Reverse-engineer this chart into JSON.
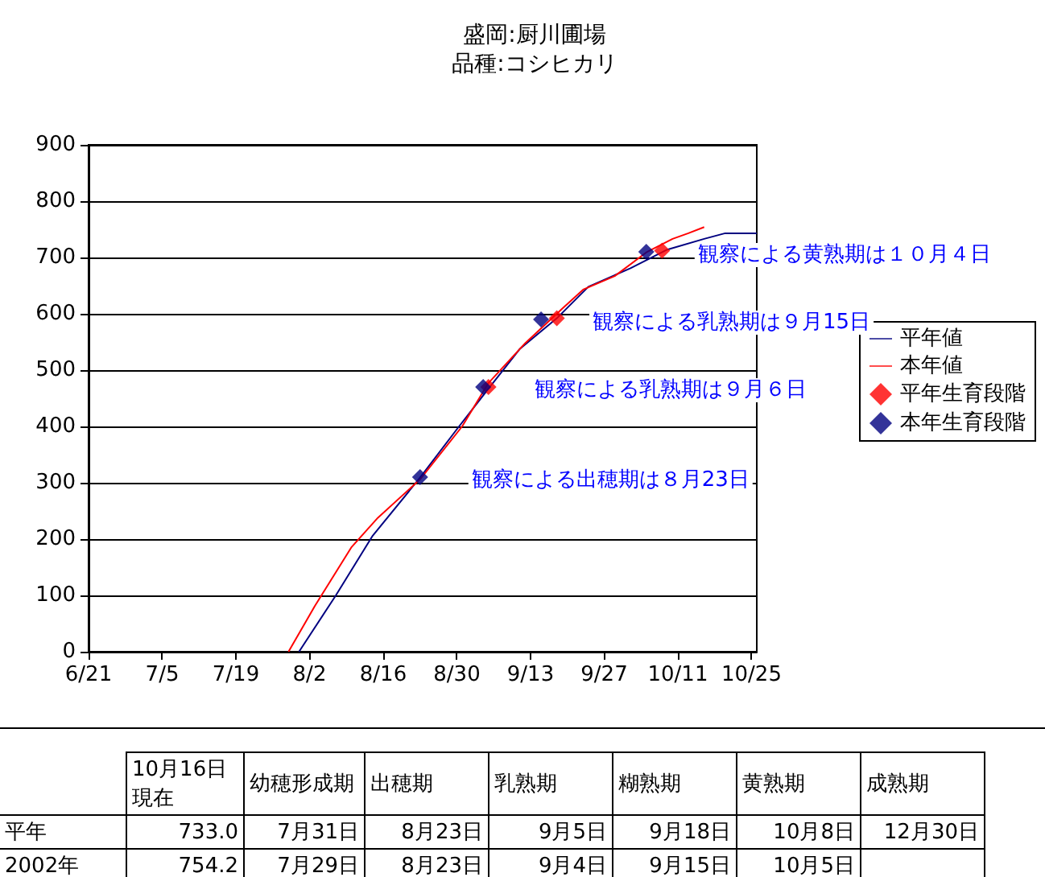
{
  "chart_data": [
    {
      "type": "line",
      "title": "盛岡:厨川圃場",
      "subtitle": "品種:コシヒカリ",
      "xlim": [
        "--06-21",
        "--10-26"
      ],
      "xticks": [
        {
          "value": "--06-21",
          "label": "6/21"
        },
        {
          "value": "--07-05",
          "label": "7/5"
        },
        {
          "value": "--07-19",
          "label": "7/19"
        },
        {
          "value": "--08-02",
          "label": "8/2"
        },
        {
          "value": "--08-16",
          "label": "8/16"
        },
        {
          "value": "--08-30",
          "label": "8/30"
        },
        {
          "value": "--09-13",
          "label": "9/13"
        },
        {
          "value": "--09-27",
          "label": "9/27"
        },
        {
          "value": "--10-11",
          "label": "10/11"
        },
        {
          "value": "--10-25",
          "label": "10/25"
        }
      ],
      "ylim": [
        0,
        900
      ],
      "yticks": [
        0,
        100,
        200,
        300,
        400,
        500,
        600,
        700,
        800,
        900
      ],
      "grid": "y",
      "legend": "right",
      "series": [
        {
          "name": "平年値",
          "type": "line",
          "marker": "none",
          "color": "#000080",
          "x": [
            "--07-31",
            "--08-07",
            "--08-14",
            "--08-23",
            "--08-30",
            "--09-05",
            "--09-11",
            "--09-18",
            "--09-24",
            "--10-02",
            "--10-09",
            "--10-16",
            "--10-20",
            "--10-26"
          ],
          "values": [
            0,
            100,
            206,
            309,
            395,
            467,
            538,
            592,
            648,
            681,
            714,
            733,
            743,
            743
          ]
        },
        {
          "name": "本年値",
          "type": "line",
          "marker": "none",
          "color": "#ff0000",
          "x": [
            "--07-29",
            "--08-03",
            "--08-10",
            "--08-15",
            "--08-23",
            "--08-31",
            "--09-05",
            "--09-12",
            "--09-19",
            "--09-23",
            "--09-29",
            "--10-05",
            "--10-10",
            "--10-13",
            "--10-16"
          ],
          "values": [
            0,
            81,
            186,
            238,
            306,
            400,
            477,
            548,
            609,
            643,
            667,
            709,
            733,
            743,
            754
          ]
        },
        {
          "name": "平年生育段階",
          "type": "scatter",
          "marker": "diamond",
          "color": "#ff0000",
          "x": [
            "--09-05",
            "--09-18",
            "--10-08"
          ],
          "values": [
            470,
            592,
            712
          ]
        },
        {
          "name": "本年生育段階",
          "type": "scatter",
          "marker": "diamond",
          "color": "#000080",
          "x": [
            "--08-23",
            "--09-04",
            "--09-15",
            "--10-05"
          ],
          "values": [
            310,
            470,
            590,
            710
          ]
        }
      ],
      "annotations": [
        {
          "text": "観察による出穂期は８月23日",
          "x": "--08-23",
          "y": 310
        },
        {
          "text": "観察による乳熟期は９月６日",
          "x": "--09-04",
          "y": 470
        },
        {
          "text": "観察による乳熟期は９月15日",
          "x": "--09-15",
          "y": 590
        },
        {
          "text": "観察による黄熟期は１０月４日",
          "x": "--10-05",
          "y": 710
        }
      ]
    },
    {
      "type": "other",
      "categories": [
        null,
        "10月16日現在",
        "幼穂形成期",
        "出穂期",
        "乳熟期",
        "糊熟期",
        "黄熟期",
        "成熟期"
      ],
      "y_categories": [
        "平年",
        "2002年"
      ],
      "cell_labels": [
        [
          "733.0",
          "7月31日",
          "8月23日",
          "9月5日",
          "9月18日",
          "10月8日",
          "12月30日"
        ],
        [
          "754.2",
          "7月29日",
          "8月23日",
          "9月4日",
          "9月15日",
          "10月5日",
          null
        ]
      ]
    }
  ]
}
